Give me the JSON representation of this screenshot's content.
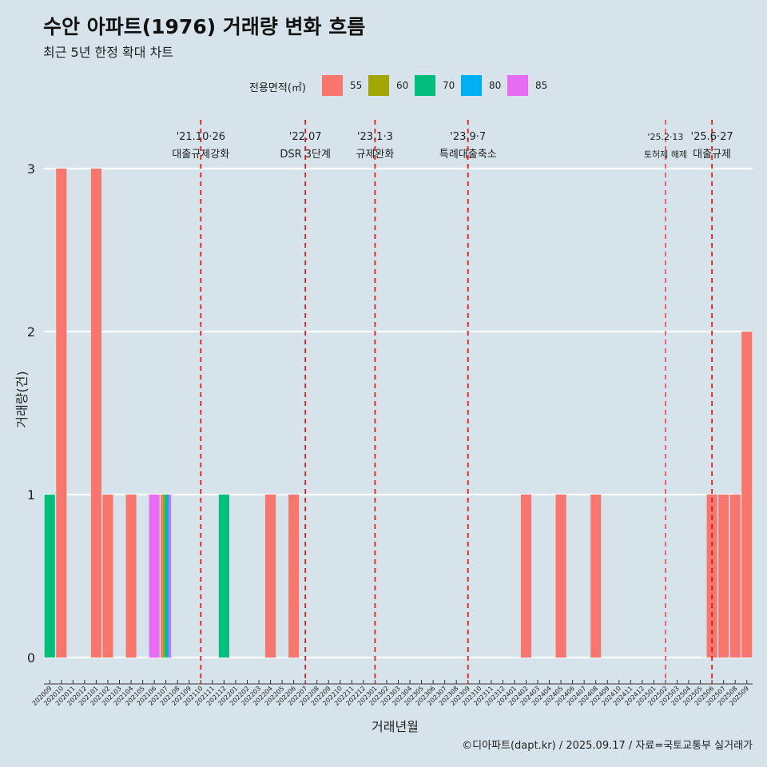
{
  "header": {
    "title": "수안 아파트(1976) 거래량 변화 흐름",
    "subtitle": "최근 5년 한정 확대 차트"
  },
  "legend": {
    "title": "전용면적(㎡)",
    "items": [
      {
        "label": "55",
        "color": "#f8766d"
      },
      {
        "label": "60",
        "color": "#a3a500"
      },
      {
        "label": "70",
        "color": "#00bf7d"
      },
      {
        "label": "80",
        "color": "#00b0f6"
      },
      {
        "label": "85",
        "color": "#e76bf3"
      }
    ]
  },
  "footer": {
    "caption": "©디아파트(dapt.kr) / 2025.09.17 / 자료=국토교통부 실거래가"
  },
  "chart_data": {
    "type": "bar",
    "stacked": "dodge",
    "xlabel": "거래년월",
    "ylabel": "거래량(건)",
    "ylim": [
      0,
      3
    ],
    "yticks": [
      0,
      1,
      2,
      3
    ],
    "grid": "horizontal",
    "legend_position": "top",
    "categories": [
      "202009",
      "202010",
      "202011",
      "202012",
      "202101",
      "202102",
      "202103",
      "202104",
      "202105",
      "202106",
      "202107",
      "202108",
      "202109",
      "202110",
      "202111",
      "202112",
      "202201",
      "202202",
      "202203",
      "202204",
      "202205",
      "202206",
      "202207",
      "202208",
      "202209",
      "202210",
      "202211",
      "202212",
      "202301",
      "202302",
      "202303",
      "202304",
      "202305",
      "202306",
      "202307",
      "202308",
      "202309",
      "202310",
      "202311",
      "202312",
      "202401",
      "202402",
      "202403",
      "202404",
      "202405",
      "202406",
      "202407",
      "202408",
      "202409",
      "202410",
      "202411",
      "202412",
      "202501",
      "202502",
      "202503",
      "202504",
      "202505",
      "202506",
      "202507",
      "202508",
      "202509"
    ],
    "bars": [
      {
        "month": "202009",
        "area": "70",
        "value": 1
      },
      {
        "month": "202010",
        "area": "55",
        "value": 3
      },
      {
        "month": "202101",
        "area": "55",
        "value": 3
      },
      {
        "month": "202102",
        "area": "55",
        "value": 1
      },
      {
        "month": "202104",
        "area": "55",
        "value": 1
      },
      {
        "month": "202106",
        "area": "85",
        "value": 1
      },
      {
        "month": "202107",
        "area": "55",
        "value": 1
      },
      {
        "month": "202107",
        "area": "60",
        "value": 1
      },
      {
        "month": "202107",
        "area": "70",
        "value": 1
      },
      {
        "month": "202107",
        "area": "80",
        "value": 1
      },
      {
        "month": "202107",
        "area": "85",
        "value": 1
      },
      {
        "month": "202112",
        "area": "70",
        "value": 1
      },
      {
        "month": "202204",
        "area": "55",
        "value": 1
      },
      {
        "month": "202206",
        "area": "55",
        "value": 1
      },
      {
        "month": "202402",
        "area": "55",
        "value": 1
      },
      {
        "month": "202405",
        "area": "55",
        "value": 1
      },
      {
        "month": "202408",
        "area": "55",
        "value": 1
      },
      {
        "month": "202506",
        "area": "55",
        "value": 1
      },
      {
        "month": "202507",
        "area": "55",
        "value": 1
      },
      {
        "month": "202508",
        "area": "55",
        "value": 1
      },
      {
        "month": "202509",
        "area": "55",
        "value": 2
      }
    ],
    "events": [
      {
        "month": "202110",
        "date": "'21.10·26",
        "label": "대출규제강화",
        "small": false
      },
      {
        "month": "202207",
        "date": "'22.07",
        "label": "DSR 3단계",
        "small": false
      },
      {
        "month": "202301",
        "date": "'23.1·3",
        "label": "규제완화",
        "small": false
      },
      {
        "month": "202309",
        "date": "'23.9·7",
        "label": "특례대출축소",
        "small": false
      },
      {
        "month": "202502",
        "date": "'25.2·13",
        "label": "토허제 해제",
        "small": true
      },
      {
        "month": "202506",
        "date": "'25.6·27",
        "label": "대출규제",
        "small": false
      }
    ],
    "event_line_color": "#e41a1c"
  }
}
